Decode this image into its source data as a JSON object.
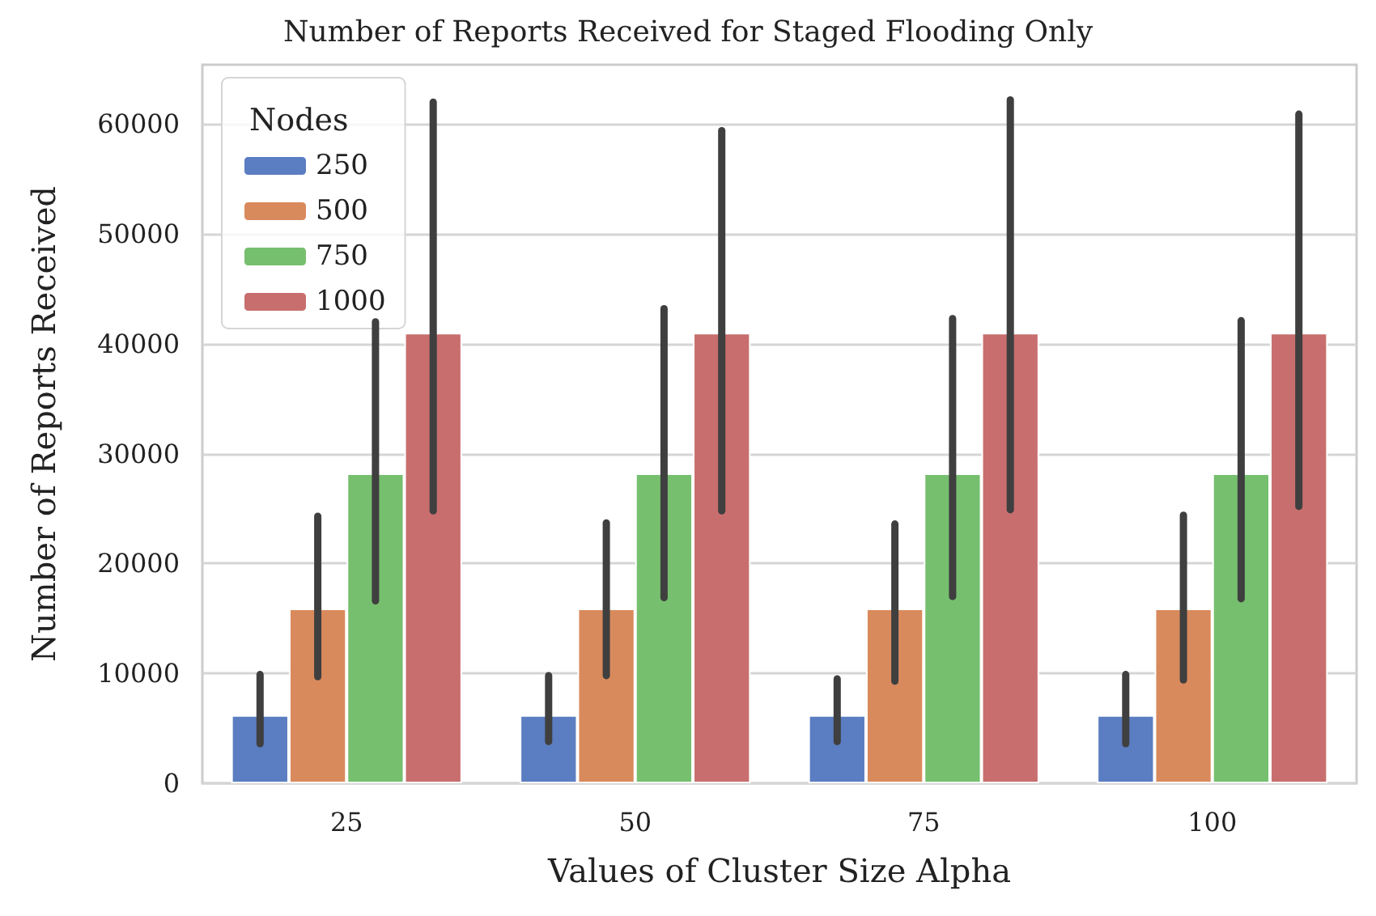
{
  "chart_data": {
    "type": "bar",
    "title": "Number of Reports Received for Staged Flooding Only",
    "xlabel": "Values of Cluster Size Alpha",
    "ylabel": "Number of Reports Received",
    "legend_title": "Nodes",
    "categories": [
      "25",
      "50",
      "75",
      "100"
    ],
    "series": [
      {
        "name": "250",
        "color": "#5b7dc1",
        "values": [
          6200,
          6200,
          6200,
          6200
        ],
        "errors": [
          [
            3600,
            9900
          ],
          [
            3800,
            9800
          ],
          [
            3800,
            9500
          ],
          [
            3600,
            9900
          ]
        ]
      },
      {
        "name": "500",
        "color": "#d98a5c",
        "values": [
          15900,
          15900,
          15900,
          15900
        ],
        "errors": [
          [
            9700,
            24300
          ],
          [
            9800,
            23700
          ],
          [
            9300,
            23600
          ],
          [
            9400,
            24400
          ]
        ]
      },
      {
        "name": "750",
        "color": "#76bf6e",
        "values": [
          28200,
          28200,
          28200,
          28200
        ],
        "errors": [
          [
            16600,
            42000
          ],
          [
            16900,
            43200
          ],
          [
            17000,
            42300
          ],
          [
            16800,
            42100
          ]
        ]
      },
      {
        "name": "1000",
        "color": "#c86e6e",
        "values": [
          41000,
          41000,
          41000,
          41000
        ],
        "errors": [
          [
            24800,
            62000
          ],
          [
            24800,
            59400
          ],
          [
            24900,
            62200
          ],
          [
            25200,
            60900
          ]
        ]
      }
    ],
    "ylim": [
      0,
      65400
    ],
    "yticks": [
      0,
      10000,
      20000,
      30000,
      40000,
      50000,
      60000
    ],
    "grid": "y",
    "legend": "top left"
  }
}
